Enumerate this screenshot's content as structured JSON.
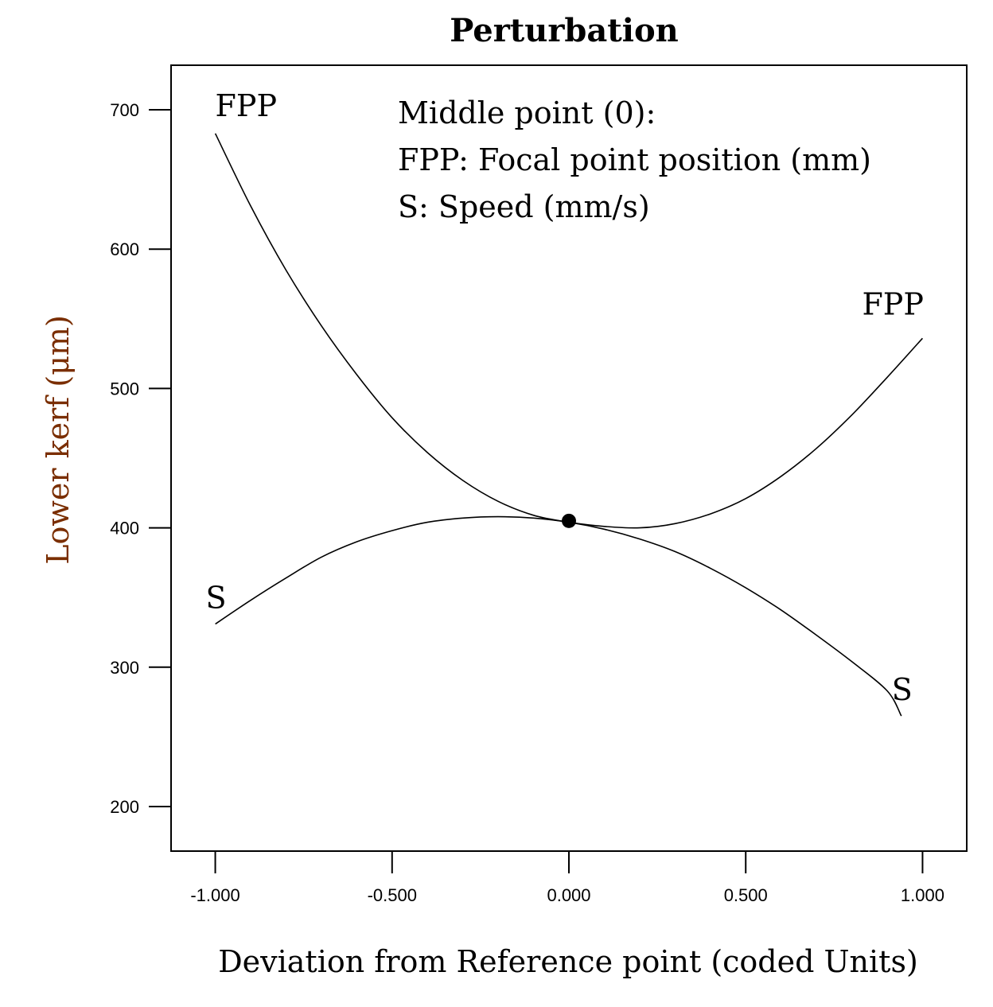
{
  "chart_data": {
    "type": "line",
    "title": "Perturbation",
    "xlabel": "Deviation from Reference point (coded Units)",
    "ylabel": "Lower kerf (μm)",
    "xlim": [
      -1.125,
      1.125
    ],
    "ylim": [
      168,
      732
    ],
    "x_ticks": [
      -1.0,
      -0.5,
      0.0,
      0.5,
      1.0
    ],
    "x_tick_labels": [
      "-1.000",
      "-0.500",
      "0.000",
      "0.500",
      "1.000"
    ],
    "y_ticks": [
      200,
      300,
      400,
      500,
      600,
      700
    ],
    "y_tick_labels": [
      "200",
      "300",
      "400",
      "500",
      "600",
      "700"
    ],
    "grid": false,
    "legend_lines": [
      "Middle point (0):",
      "FPP: Focal point position (mm)",
      "S: Speed (mm/s)"
    ],
    "series": [
      {
        "name": "FPP",
        "start_label": "FPP",
        "end_label": "FPP",
        "x": [
          -1.0,
          -0.9,
          -0.8,
          -0.7,
          -0.6,
          -0.5,
          -0.4,
          -0.3,
          -0.2,
          -0.1,
          0.0,
          0.1,
          0.2,
          0.3,
          0.4,
          0.5,
          0.6,
          0.7,
          0.8,
          0.9,
          1.0
        ],
        "y": [
          683,
          631,
          585,
          545,
          510,
          479,
          454,
          434,
          419,
          409,
          404,
          401,
          400,
          403,
          410,
          421,
          437,
          457,
          481,
          508,
          536
        ]
      },
      {
        "name": "S",
        "start_label": "S",
        "end_label": "S",
        "x": [
          -1.0,
          -0.9,
          -0.8,
          -0.7,
          -0.6,
          -0.5,
          -0.4,
          -0.3,
          -0.2,
          -0.1,
          0.0,
          0.1,
          0.2,
          0.3,
          0.4,
          0.5,
          0.6,
          0.7,
          0.8,
          0.9,
          0.94
        ],
        "y": [
          331,
          348,
          364,
          379,
          390,
          398,
          404,
          407,
          408,
          407,
          404,
          399,
          392,
          383,
          371,
          357,
          341,
          323,
          304,
          283,
          265
        ]
      }
    ],
    "reference_point": {
      "x": 0.0,
      "y": 405
    }
  }
}
